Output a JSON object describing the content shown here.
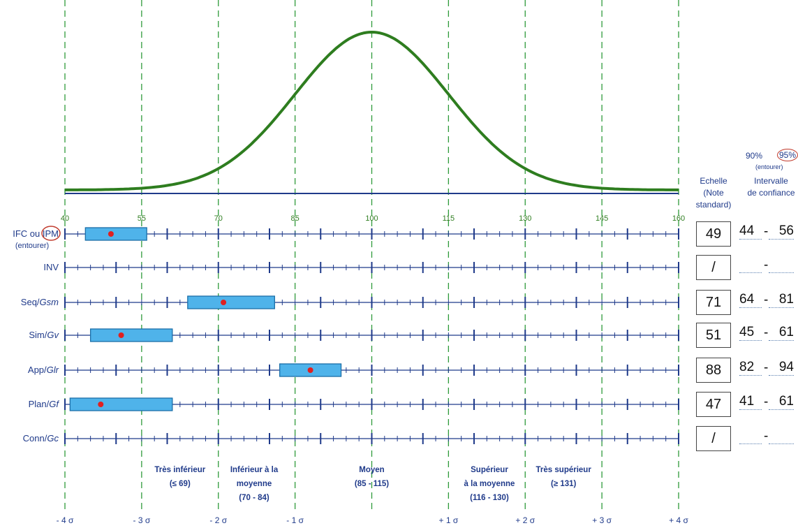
{
  "chart_data": {
    "type": "scatter",
    "title": "",
    "x_min": 40,
    "x_max": 160,
    "x_ticks": [
      "40",
      "55",
      "70",
      "85",
      "100",
      "115",
      "130",
      "145",
      "160"
    ],
    "sigma_labels": [
      "- 4 σ",
      "- 3 σ",
      "- 2 σ",
      "- 1 σ",
      "+ 1 σ",
      "+ 2 σ",
      "+ 3 σ",
      "+ 4 σ"
    ],
    "sigma_positions": [
      40,
      55,
      70,
      85,
      115,
      130,
      145,
      160
    ],
    "mean_line": 100,
    "curve": {
      "mean": 100,
      "sd": 15
    },
    "rows": [
      {
        "label": "IFC ou ",
        "label_circled": "IPM",
        "sublabel": "(entourer)",
        "score": 49,
        "score_text": "49",
        "ci_low": "44",
        "ci_high": "56",
        "band": [
          44,
          56
        ]
      },
      {
        "label": "INV",
        "score": null,
        "score_text": "/",
        "ci_low": "",
        "ci_high": "",
        "band": null
      },
      {
        "label": "Seq/",
        "label_italic": "Gsm",
        "score": 71,
        "score_text": "71",
        "ci_low": "64",
        "ci_high": "81",
        "band": [
          64,
          81
        ]
      },
      {
        "label": "Sim/",
        "label_italic": "Gv",
        "score": 51,
        "score_text": "51",
        "ci_low": "45",
        "ci_high": "61",
        "band": [
          45,
          61
        ]
      },
      {
        "label": "App/",
        "label_italic": "Glr",
        "score": 88,
        "score_text": "88",
        "ci_low": "82",
        "ci_high": "94",
        "band": [
          82,
          94
        ]
      },
      {
        "label": "Plan/",
        "label_italic": "Gf",
        "score": 47,
        "score_text": "47",
        "ci_low": "41",
        "ci_high": "61",
        "band": [
          41,
          61
        ]
      },
      {
        "label": "Conn/",
        "label_italic": "Gc",
        "score": null,
        "score_text": "/",
        "ci_low": "",
        "ci_high": "",
        "band": null
      }
    ],
    "categories": [
      {
        "lines": [
          "Très inférieur",
          "(≤ 69)"
        ],
        "center": 62.5
      },
      {
        "lines": [
          "Inférieur à la",
          "moyenne",
          "(70 - 84)"
        ],
        "center": 77
      },
      {
        "lines": [
          "Moyen",
          "(85 - 115)"
        ],
        "center": 100
      },
      {
        "lines": [
          "Supérieur",
          "à la moyenne",
          "(116 - 130)"
        ],
        "center": 123
      },
      {
        "lines": [
          "Très supérieur",
          "(≥ 131)"
        ],
        "center": 137.5
      }
    ],
    "colors": {
      "curve": "#2e7d1f",
      "grid": "#2e9a3a",
      "axis": "#1f3a8a",
      "band_fill": "#4fb3ea",
      "band_stroke": "#1c6fa8",
      "dot": "#e02020",
      "circle": "#c0392b"
    }
  },
  "header": {
    "pct90": "90%",
    "pct95": "95%",
    "entourer": "(entourer)",
    "echelle_1": "Echelle",
    "echelle_2": "(Note standard)",
    "intervalle_1": "Intervalle",
    "intervalle_2": "de confiance"
  }
}
